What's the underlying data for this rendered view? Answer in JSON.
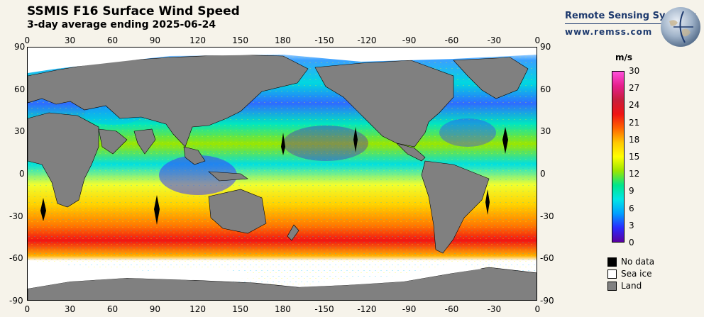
{
  "header": {
    "title": "SSMIS F16 Surface Wind Speed",
    "subtitle": "3-day average ending 2025-06-24"
  },
  "brand": {
    "name": "Remote Sensing Systems",
    "url": "www.remss.com"
  },
  "axes": {
    "lon_ticks": [
      "0",
      "30",
      "60",
      "90",
      "120",
      "150",
      "180",
      "-150",
      "-120",
      "-90",
      "-60",
      "-30",
      "0"
    ],
    "lat_ticks": [
      "90",
      "60",
      "30",
      "0",
      "-30",
      "-60",
      "-90"
    ]
  },
  "colorbar": {
    "unit": "m/s",
    "ticks": [
      "30",
      "27",
      "24",
      "21",
      "18",
      "15",
      "12",
      "9",
      "6",
      "3",
      "0"
    ],
    "range": [
      0,
      30
    ],
    "colors": [
      "#5a00a0",
      "#2a2aff",
      "#00a0ff",
      "#00e6e6",
      "#00e68c",
      "#9be600",
      "#ffff00",
      "#ffc800",
      "#ff6400",
      "#f01414",
      "#c81e3c",
      "#e61e8c",
      "#ff50dc"
    ]
  },
  "legend": {
    "items": [
      {
        "label": "No data",
        "color": "#000000"
      },
      {
        "label": "Sea ice",
        "color": "#ffffff"
      },
      {
        "label": "Land",
        "color": "#808080"
      }
    ]
  }
}
